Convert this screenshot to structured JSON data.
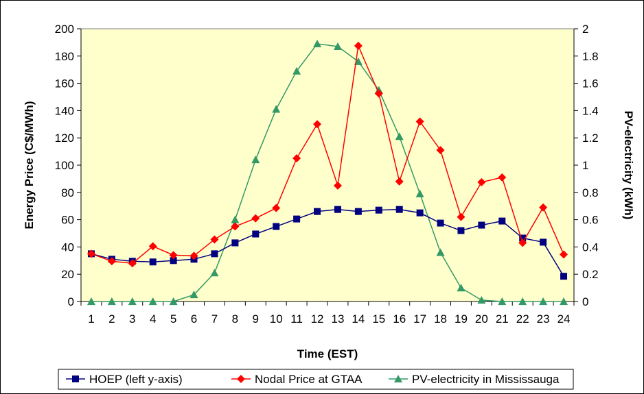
{
  "chart_data": {
    "type": "line",
    "xlabel": "Time (EST)",
    "ylabel": "Energy Price (C$/MWh)",
    "y2label": "PV-electricity (kWh)",
    "x": [
      1,
      2,
      3,
      4,
      5,
      6,
      7,
      8,
      9,
      10,
      11,
      12,
      13,
      14,
      15,
      16,
      17,
      18,
      19,
      20,
      21,
      22,
      23,
      24
    ],
    "ylim": [
      0,
      200
    ],
    "yticks": [
      0,
      20,
      40,
      60,
      80,
      100,
      120,
      140,
      160,
      180,
      200
    ],
    "y2lim": [
      0,
      2
    ],
    "y2ticks": [
      "0",
      "0.2",
      "0.4",
      "0.6",
      "0.8",
      "1",
      "1.2",
      "1.4",
      "1.6",
      "1.8",
      "2"
    ],
    "plot_background": "#ffffcc",
    "series": [
      {
        "name": "HOEP (left y-axis)",
        "axis": "left",
        "color": "#000080",
        "marker": "square",
        "values": [
          35,
          31,
          29.5,
          29,
          30,
          31,
          35,
          43,
          49.5,
          55,
          60.5,
          66,
          67.5,
          66,
          67,
          67.5,
          65,
          57.5,
          52,
          56,
          59,
          46.5,
          43.5,
          18.5
        ]
      },
      {
        "name": "Nodal Price at GTAA",
        "axis": "left",
        "color": "#ff0000",
        "marker": "diamond",
        "values": [
          35,
          29.5,
          28,
          40.5,
          34,
          33.5,
          45.5,
          55,
          61,
          68.5,
          105,
          130,
          85,
          187.5,
          152.5,
          88,
          132,
          111,
          62,
          87.5,
          91,
          43,
          69,
          34.5
        ]
      },
      {
        "name": "PV-electricity in Mississauga",
        "axis": "right",
        "color": "#339966",
        "marker": "triangle",
        "values": [
          0,
          0,
          0,
          0,
          0,
          0.05,
          0.21,
          0.6,
          1.04,
          1.41,
          1.69,
          1.89,
          1.87,
          1.76,
          1.55,
          1.21,
          0.79,
          0.36,
          0.1,
          0.01,
          0,
          0,
          0,
          0
        ]
      }
    ],
    "grid": false,
    "legend_position": "bottom"
  }
}
